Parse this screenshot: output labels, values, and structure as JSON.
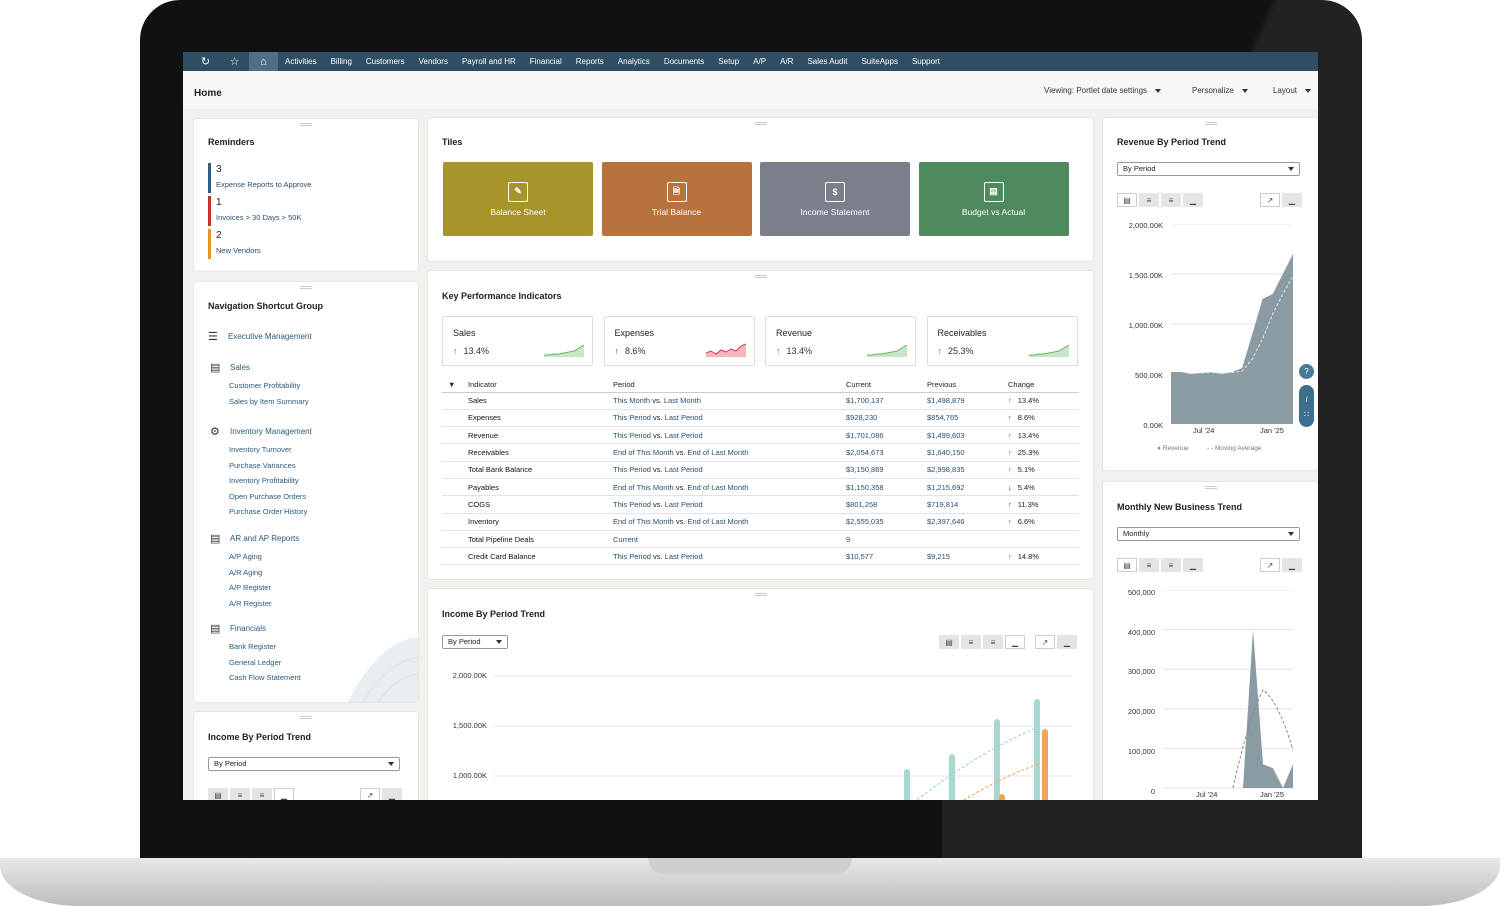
{
  "nav": {
    "items": [
      "Activities",
      "Billing",
      "Customers",
      "Vendors",
      "Payroll and HR",
      "Financial",
      "Reports",
      "Analytics",
      "Documents",
      "Setup",
      "A/P",
      "A/R",
      "Sales Audit",
      "SuiteApps",
      "Support"
    ]
  },
  "header": {
    "title": "Home",
    "viewing": "Viewing: Portlet date settings",
    "personalize": "Personalize",
    "layout": "Layout"
  },
  "reminders": {
    "title": "Reminders",
    "items": [
      {
        "count": "3",
        "label": "Expense Reports to Approve",
        "color": "#2f5f80"
      },
      {
        "count": "1",
        "label": "Invoices > 30 Days > 50K",
        "color": "#c0332b"
      },
      {
        "count": "2",
        "label": "New Vendors",
        "color": "#e0942b"
      }
    ]
  },
  "shortcuts": {
    "title": "Navigation Shortcut Group",
    "group": "Executive Management",
    "sections": [
      {
        "label": "Sales",
        "links": [
          "Customer Profitability",
          "Sales by Item Summary"
        ]
      },
      {
        "label": "Inventory Management",
        "links": [
          "Inventory Turnover",
          "Purchase Variances",
          "Inventory Profitability",
          "Open Purchase Orders",
          "Purchase Order History"
        ]
      },
      {
        "label": "AR and AP Reports",
        "links": [
          "A/P Aging",
          "A/R Aging",
          "A/P Register",
          "A/R Register"
        ]
      },
      {
        "label": "Financials",
        "links": [
          "Bank Register",
          "General Ledger",
          "Cash Flow Statement"
        ]
      }
    ]
  },
  "tiles": {
    "title": "Tiles",
    "items": [
      {
        "label": "Balance Sheet",
        "color": "#a8952a"
      },
      {
        "label": "Trial Balance",
        "color": "#b8723e"
      },
      {
        "label": "Income Statement",
        "color": "#7b7f8c"
      },
      {
        "label": "Budget vs Actual",
        "color": "#4f8a5e"
      }
    ]
  },
  "kpi": {
    "title": "Key Performance Indicators",
    "boxes": [
      {
        "label": "Sales",
        "value": "13.4%",
        "dir": "up",
        "color": "#5cb85c"
      },
      {
        "label": "Expenses",
        "value": "8.6%",
        "dir": "up",
        "color": "#d9344a"
      },
      {
        "label": "Revenue",
        "value": "13.4%",
        "dir": "up",
        "color": "#5cb85c"
      },
      {
        "label": "Receivables",
        "value": "25.3%",
        "dir": "up",
        "color": "#5cb85c"
      }
    ],
    "headers": [
      "Indicator",
      "Period",
      "Current",
      "Previous",
      "Change"
    ],
    "rows": [
      {
        "ind": "Sales",
        "p1": "This Month",
        "vs": " vs. ",
        "p2": "Last Month",
        "cur": "$1,700,137",
        "prev": "$1,498,879",
        "chg": "13.4%",
        "dir": "up"
      },
      {
        "ind": "Expenses",
        "p1": "This Period",
        "vs": " vs. ",
        "p2": "Last Period",
        "cur": "$928,230",
        "prev": "$854,765",
        "chg": "8.6%",
        "dir": "upred"
      },
      {
        "ind": "Revenue",
        "p1": "This Period",
        "vs": " vs. ",
        "p2": "Last Period",
        "cur": "$1,701,086",
        "prev": "$1,499,603",
        "chg": "13.4%",
        "dir": "up"
      },
      {
        "ind": "Receivables",
        "p1": "End of This Month",
        "vs": " vs. ",
        "p2": "End of Last Month",
        "cur": "$2,054,673",
        "prev": "$1,640,150",
        "chg": "25.3%",
        "dir": "up"
      },
      {
        "ind": "Total Bank Balance",
        "p1": "This Period",
        "vs": " vs. ",
        "p2": "Last Period",
        "cur": "$3,150,869",
        "prev": "$2,998,835",
        "chg": "5.1%",
        "dir": "up"
      },
      {
        "ind": "Payables",
        "p1": "End of This Month",
        "vs": " vs. ",
        "p2": "End of Last Month",
        "cur": "$1,150,358",
        "prev": "$1,215,692",
        "chg": "5.4%",
        "dir": "down"
      },
      {
        "ind": "COGS",
        "p1": "This Period",
        "vs": " vs. ",
        "p2": "Last Period",
        "cur": "$801,258",
        "prev": "$719,814",
        "chg": "11.3%",
        "dir": "upred"
      },
      {
        "ind": "Inventory",
        "p1": "End of This Month",
        "vs": " vs. ",
        "p2": "End of Last Month",
        "cur": "$2,555,035",
        "prev": "$2,397,646",
        "chg": "6.6%",
        "dir": "up"
      },
      {
        "ind": "Total Pipeline Deals",
        "p1": "Current",
        "vs": "",
        "p2": "",
        "cur": "9",
        "prev": "",
        "chg": "",
        "dir": ""
      },
      {
        "ind": "Credit Card Balance",
        "p1": "This Period",
        "vs": " vs. ",
        "p2": "Last Period",
        "cur": "$10,577",
        "prev": "$9,215",
        "chg": "14.8%",
        "dir": "up"
      }
    ]
  },
  "income_trend": {
    "title": "Income By Period Trend",
    "select": "By Period",
    "yticks": [
      "2,000.00K",
      "1,500.00K",
      "1,000.00K"
    ]
  },
  "income_trend_small": {
    "title": "Income By Period Trend",
    "select": "By Period"
  },
  "revenue_trend": {
    "title": "Revenue By Period Trend",
    "select": "By Period",
    "yticks": [
      "2,000.00K",
      "1,500.00K",
      "1,000.00K",
      "500.00K",
      "0.00K"
    ],
    "xticks": [
      "Jul '24",
      "Jan '25"
    ],
    "legend": [
      "Revenue",
      "Moving Average"
    ]
  },
  "new_business": {
    "title": "Monthly New Business Trend",
    "select": "Monthly",
    "yticks": [
      "500,000",
      "400,000",
      "300,000",
      "200,000",
      "100,000",
      "0"
    ],
    "xticks": [
      "Jul '24",
      "Jan '25"
    ]
  },
  "chart_data": [
    {
      "type": "area",
      "title": "Revenue By Period Trend",
      "ylim": [
        0,
        2000
      ],
      "series": [
        {
          "name": "Revenue",
          "values": [
            520,
            520,
            500,
            510,
            520,
            500,
            520,
            560,
            900,
            1250,
            1300,
            1500,
            1700
          ]
        },
        {
          "name": "Moving Average",
          "values": [
            null,
            null,
            null,
            510,
            515,
            510,
            515,
            530,
            650,
            850,
            1100,
            1300,
            1480
          ]
        }
      ]
    },
    {
      "type": "area",
      "title": "Monthly New Business Trend",
      "ylim": [
        0,
        500000
      ],
      "series": [
        {
          "values": [
            0,
            0,
            0,
            0,
            0,
            0,
            0,
            0,
            0,
            400000,
            60000,
            50000,
            0,
            60000
          ]
        }
      ]
    },
    {
      "type": "bar",
      "title": "Income By Period Trend",
      "ylim": [
        0,
        2000
      ]
    }
  ]
}
